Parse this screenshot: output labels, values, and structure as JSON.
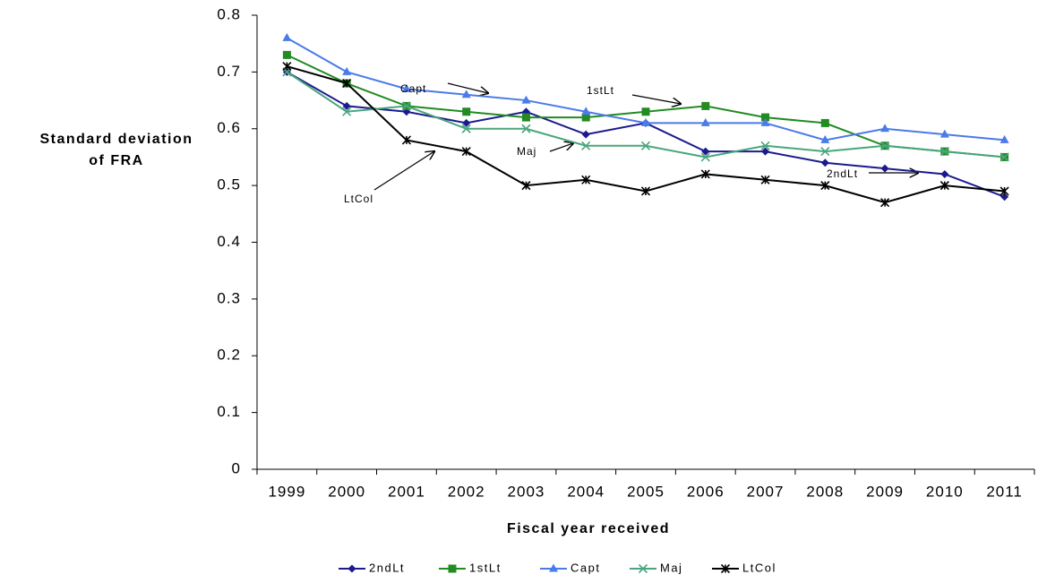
{
  "chart_data": {
    "type": "line",
    "ylabel": [
      "Standard deviation",
      "of FRA"
    ],
    "xlabel": "Fiscal year received",
    "categories": [
      "1999",
      "2000",
      "2001",
      "2002",
      "2003",
      "2004",
      "2005",
      "2006",
      "2007",
      "2008",
      "2009",
      "2010",
      "2011"
    ],
    "ylim": [
      0,
      0.8
    ],
    "yticks": [
      0,
      0.1,
      0.2,
      0.3,
      0.4,
      0.5,
      0.6,
      0.7,
      0.8
    ],
    "series": [
      {
        "name": "2ndLt",
        "color": "#1b1b8f",
        "values": [
          0.7,
          0.64,
          0.63,
          0.61,
          0.63,
          0.59,
          0.61,
          0.56,
          0.56,
          0.54,
          0.53,
          0.52,
          0.48
        ]
      },
      {
        "name": "1stLt",
        "color": "#228b22",
        "values": [
          0.73,
          0.68,
          0.64,
          0.63,
          0.62,
          0.62,
          0.63,
          0.64,
          0.62,
          0.61,
          0.57,
          0.56,
          0.55
        ]
      },
      {
        "name": "Capt",
        "color": "#4a7be8",
        "values": [
          0.76,
          0.7,
          0.67,
          0.66,
          0.65,
          0.63,
          0.61,
          0.61,
          0.61,
          0.58,
          0.6,
          0.59,
          0.58
        ]
      },
      {
        "name": "Maj",
        "color": "#4aa57c",
        "values": [
          0.7,
          0.63,
          0.64,
          0.6,
          0.6,
          0.57,
          0.57,
          0.55,
          0.57,
          0.56,
          0.57,
          0.56,
          0.55
        ]
      },
      {
        "name": "LtCol",
        "color": "#000000",
        "values": [
          0.71,
          0.68,
          0.58,
          0.56,
          0.5,
          0.51,
          0.49,
          0.52,
          0.51,
          0.5,
          0.47,
          0.5,
          0.49
        ]
      }
    ],
    "annotations": [
      "Capt",
      "1stLt",
      "Maj",
      "LtCol",
      "2ndLt"
    ]
  }
}
